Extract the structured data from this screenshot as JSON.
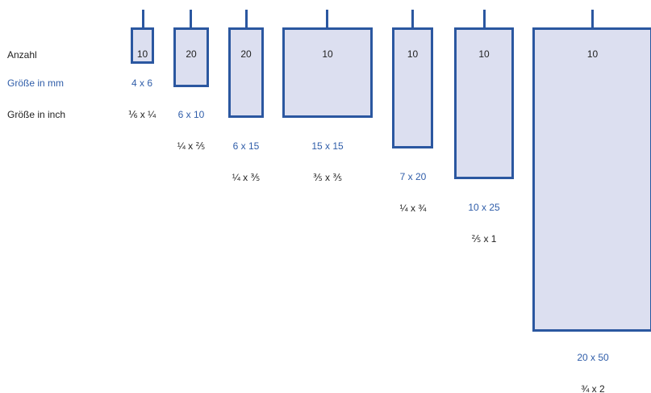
{
  "row_labels": {
    "anzahl": "Anzahl",
    "mm": "Größe in mm",
    "inch": "Größe in inch"
  },
  "colors": {
    "accent": "#2b57a0",
    "fill": "#dcdff0",
    "text": "#222222",
    "blue_text": "#2f5da9"
  },
  "sizes": [
    {
      "count": "10",
      "mm": "4 x 6",
      "inch": "⅙ x ¼"
    },
    {
      "count": "20",
      "mm": "6 x 10",
      "inch": "¼ x ⅖"
    },
    {
      "count": "20",
      "mm": "6 x 15",
      "inch": "¼ x ⅗"
    },
    {
      "count": "10",
      "mm": "15 x 15",
      "inch": "⅗ x ⅗"
    },
    {
      "count": "10",
      "mm": "7 x 20",
      "inch": "¼ x ¾"
    },
    {
      "count": "10",
      "mm": "10 x 25",
      "inch": "⅖ x 1"
    },
    {
      "count": "10",
      "mm": "20 x 50",
      "inch": "¾ x 2"
    }
  ]
}
